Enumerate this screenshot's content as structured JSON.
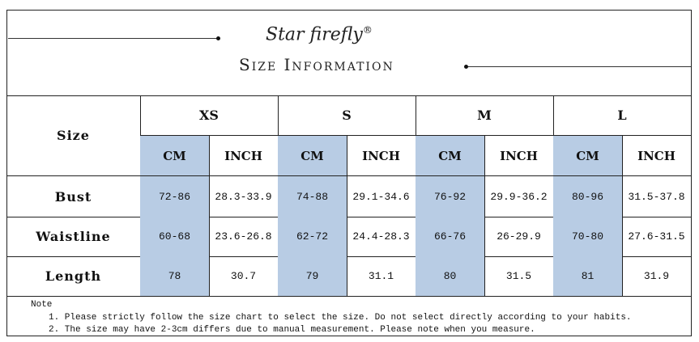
{
  "header": {
    "brand": "Star firefly",
    "registered": "®",
    "title": "Size Information"
  },
  "table": {
    "corner": "Size",
    "sizes": [
      "XS",
      "S",
      "M",
      "L"
    ],
    "units": [
      "CM",
      "INCH"
    ],
    "rows": [
      {
        "label": "Bust",
        "cells": [
          "72-86",
          "28.3-33.9",
          "74-88",
          "29.1-34.6",
          "76-92",
          "29.9-36.2",
          "80-96",
          "31.5-37.8"
        ]
      },
      {
        "label": "Waistline",
        "cells": [
          "60-68",
          "23.6-26.8",
          "62-72",
          "24.4-28.3",
          "66-76",
          "26-29.9",
          "70-80",
          "27.6-31.5"
        ]
      },
      {
        "label": "Length",
        "cells": [
          "78",
          "30.7",
          "79",
          "31.1",
          "80",
          "31.5",
          "81",
          "31.9"
        ]
      }
    ]
  },
  "notes": {
    "label": "Note",
    "items": [
      "1. Please strictly follow the size chart to select the size. Do not select directly according to your habits.",
      "2. The size may have 2-3cm differs due to manual measurement. Please note when you measure."
    ]
  }
}
